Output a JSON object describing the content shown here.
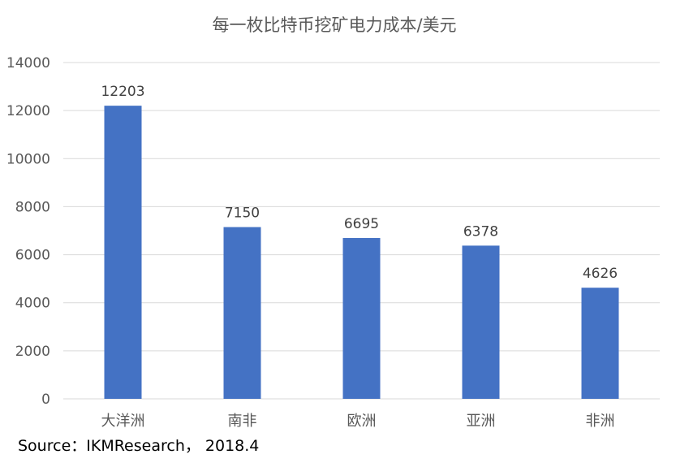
{
  "chart_data": {
    "type": "bar",
    "title": "每一枚比特币挖矿电力成本/美元",
    "categories": [
      "大洋洲",
      "南非",
      "欧洲",
      "亚洲",
      "非洲"
    ],
    "values": [
      12203,
      7150,
      6695,
      6378,
      4626
    ],
    "ylim": [
      0,
      14000
    ],
    "yticks": [
      0,
      2000,
      4000,
      6000,
      8000,
      10000,
      12000,
      14000
    ],
    "grid": true,
    "data_labels": true,
    "bar_color": "#4472C4",
    "grid_color": "#D9D9D9"
  },
  "source": "Source：IKMResearch，  2018.4"
}
